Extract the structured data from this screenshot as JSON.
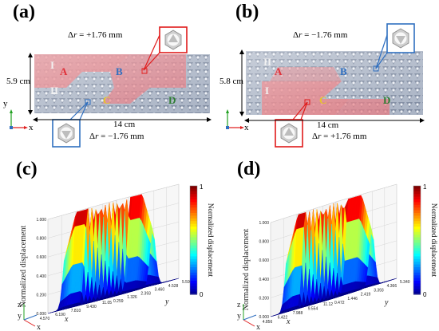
{
  "figure": {
    "panel_a": {
      "label": "(a)",
      "dr_top": "Δr = +1.76 mm",
      "dr_bottom": "Δr = −1.76 mm",
      "width_label": "14 cm",
      "height_label": "5.9 cm",
      "zones": [
        "A",
        "B",
        "C",
        "D"
      ],
      "roman": [
        "I",
        "II"
      ]
    },
    "panel_b": {
      "label": "(b)",
      "dr_top": "Δr = −1.76 mm",
      "dr_bottom": "Δr = +1.76 mm",
      "width_label": "14 cm",
      "height_label": "5.8 cm",
      "zones": [
        "A",
        "B",
        "C",
        "D"
      ],
      "roman": [
        "II",
        "I"
      ]
    },
    "axis_y": "y",
    "axis_x": "x",
    "axis_z": "z",
    "colors": {
      "red_region": "#e8747a",
      "blue_box": "#2f6fc0",
      "red_box": "#e01a1a",
      "zone_A": "#e0313a",
      "zone_B": "#2f6fc0",
      "zone_C": "#e6c52a",
      "zone_D": "#2e7d32"
    }
  },
  "chart_data": [
    {
      "type": "surface",
      "panel_label": "(c)",
      "zlabel": "Normalized displacement",
      "xlabel": "x",
      "ylabel": "y",
      "z_ticks": [
        "0.000",
        "0.200",
        "0.400",
        "0.600",
        "0.800",
        "1.000"
      ],
      "x_ticks": [
        "4.570",
        "6.190",
        "7.810",
        "9.430",
        "11.05"
      ],
      "y_ticks": [
        "0.259",
        "1.326",
        "2.393",
        "3.460",
        "4.528",
        "5.595"
      ],
      "colorbar": {
        "label": "Normalized displacement",
        "min": "0",
        "max": "1"
      }
    },
    {
      "type": "surface",
      "panel_label": "(d)",
      "zlabel": "Normalized displacement",
      "xlabel": "x",
      "ylabel": "y",
      "z_ticks": [
        "0.000",
        "0.200",
        "0.400",
        "0.600",
        "0.800",
        "1.000"
      ],
      "x_ticks": [
        "4.856",
        "6.422",
        "7.988",
        "9.554",
        "11.12"
      ],
      "y_ticks": [
        "0.472",
        "1.446",
        "2.419",
        "3.393",
        "4.366",
        "5.340"
      ],
      "colorbar": {
        "label": "Normalized displacement",
        "min": "0",
        "max": "1"
      }
    }
  ]
}
